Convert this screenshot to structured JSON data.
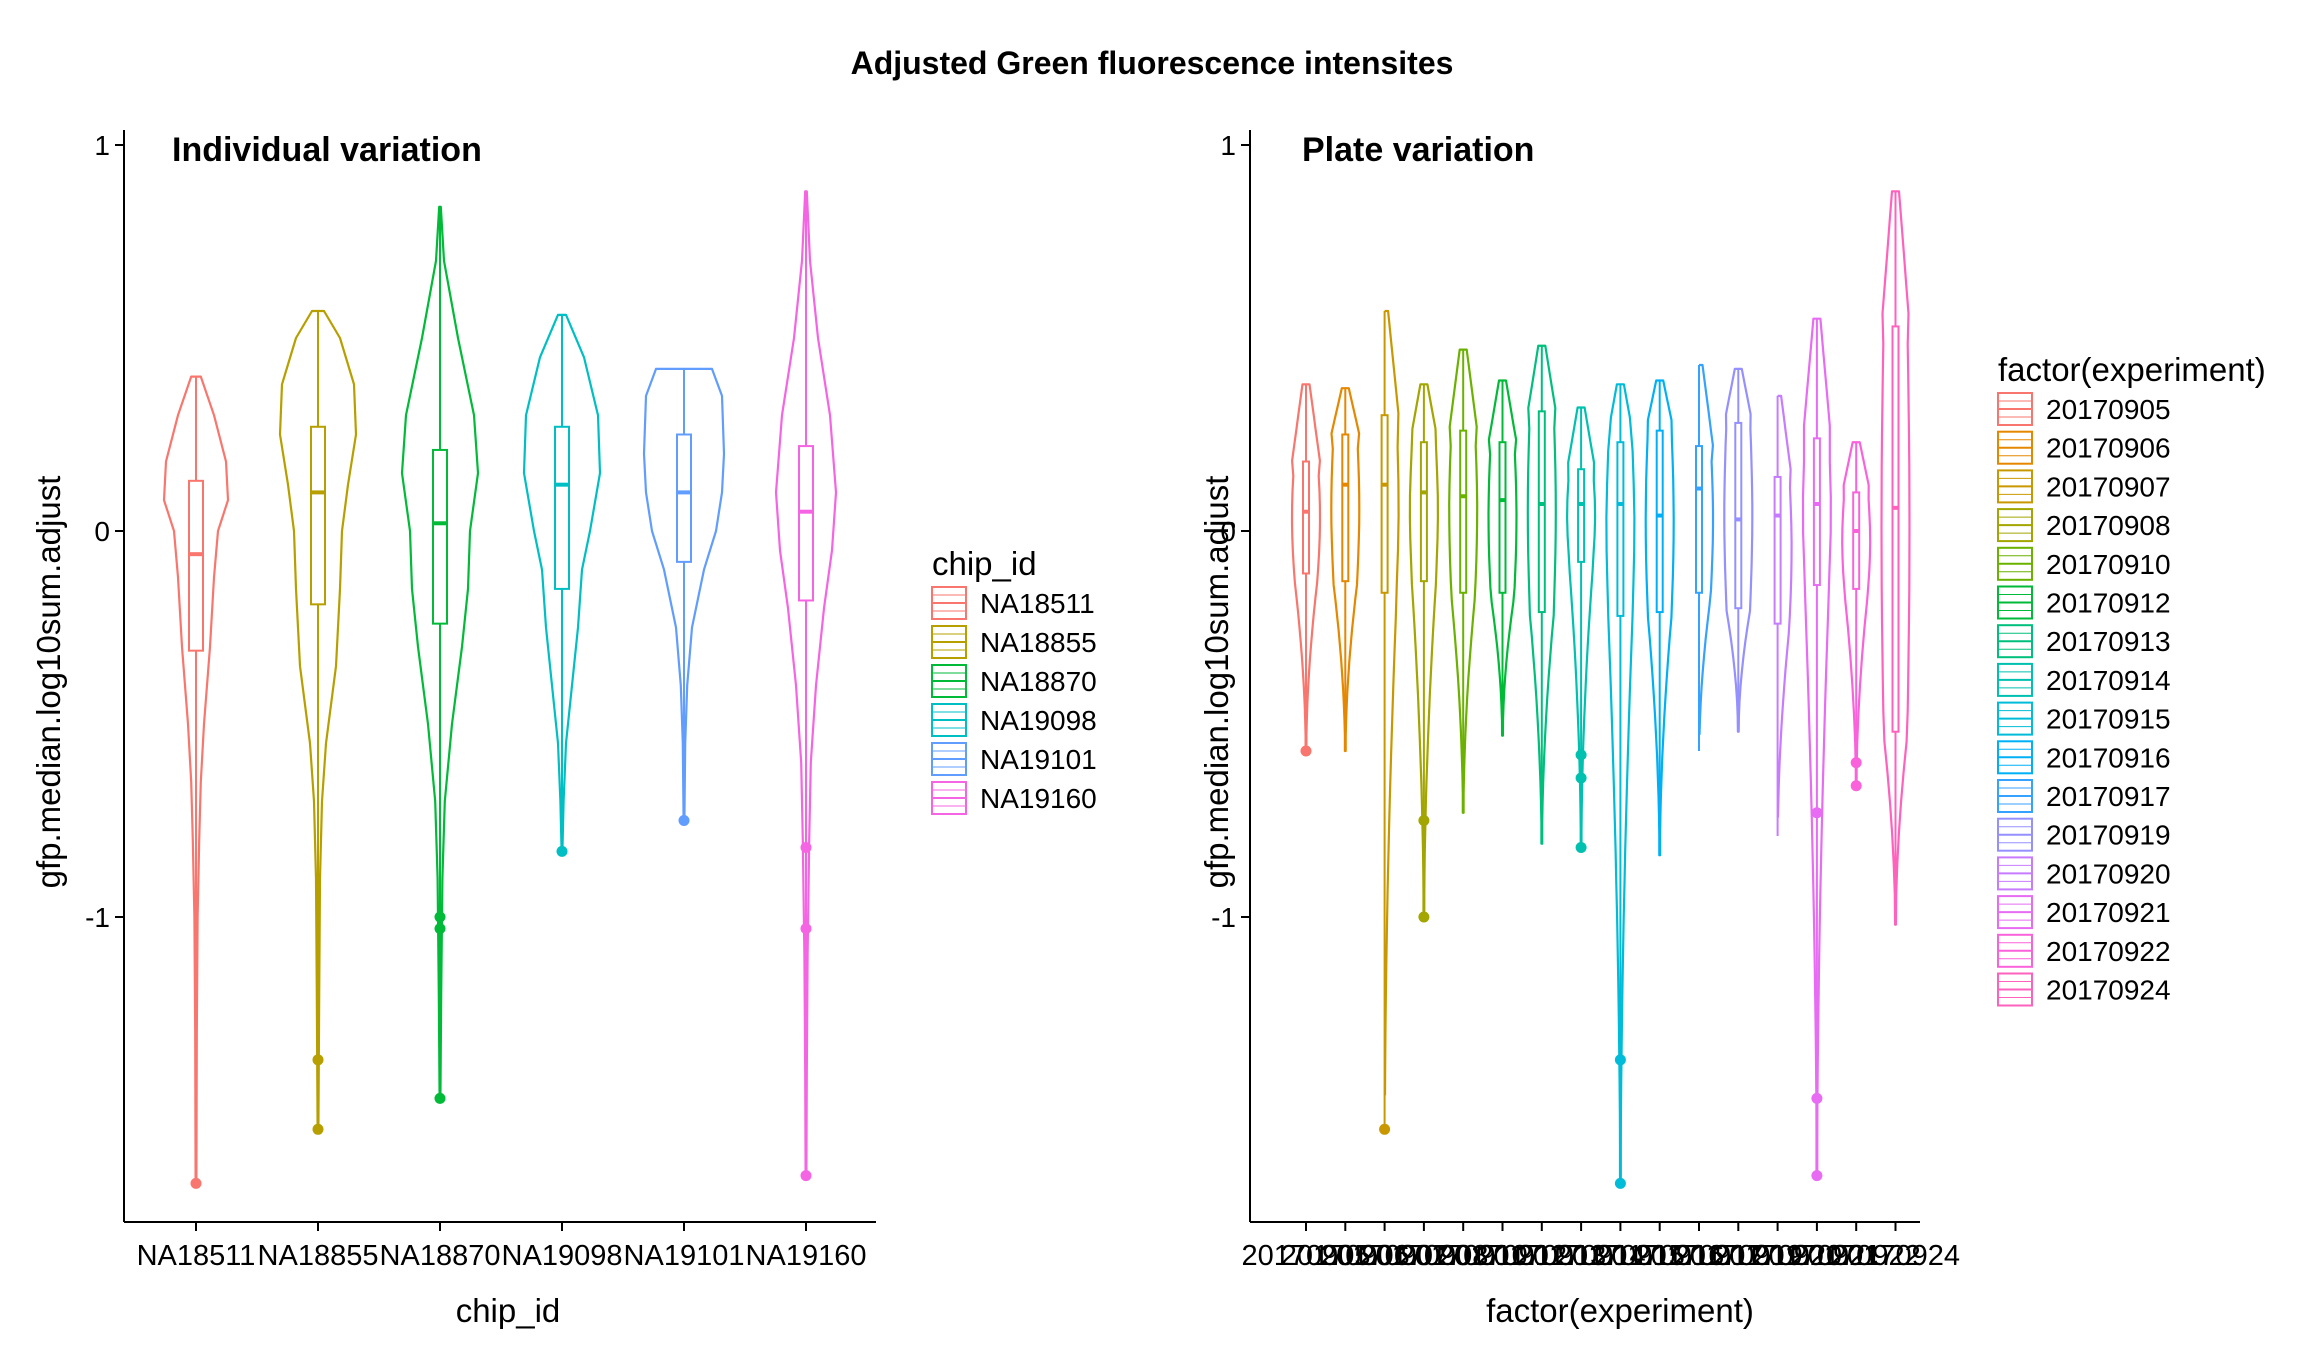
{
  "title": "Adjusted Green fluorescence intensites",
  "chart_data": [
    {
      "type": "violin",
      "panel_title": "Individual variation",
      "xlabel": "chip_id",
      "ylabel": "gfp.median.log10sum.adjust",
      "ylim": [
        -1.83,
        1.0
      ],
      "yticks": [
        1,
        0,
        -1
      ],
      "legend_title": "chip_id",
      "legend_position": "right",
      "groups": [
        {
          "name": "NA18511",
          "color": "#F8766D",
          "min": -1.69,
          "q1": -0.31,
          "median": -0.06,
          "q3": 0.13,
          "max": 0.4,
          "density": [
            [
              0.4,
              0.12
            ],
            [
              0.3,
              0.45
            ],
            [
              0.18,
              0.75
            ],
            [
              0.08,
              0.8
            ],
            [
              0.0,
              0.55
            ],
            [
              -0.12,
              0.45
            ],
            [
              -0.3,
              0.35
            ],
            [
              -0.5,
              0.2
            ],
            [
              -0.65,
              0.12
            ],
            [
              -0.8,
              0.08
            ],
            [
              -1.0,
              0.04
            ],
            [
              -1.3,
              0.02
            ],
            [
              -1.69,
              0.01
            ]
          ],
          "outliers": [
            -1.69
          ]
        },
        {
          "name": "NA18855",
          "color": "#B79F00",
          "min": -1.55,
          "q1": -0.19,
          "median": 0.1,
          "q3": 0.27,
          "max": 0.57,
          "density": [
            [
              0.57,
              0.15
            ],
            [
              0.5,
              0.55
            ],
            [
              0.38,
              0.9
            ],
            [
              0.25,
              0.95
            ],
            [
              0.12,
              0.75
            ],
            [
              0.0,
              0.6
            ],
            [
              -0.15,
              0.55
            ],
            [
              -0.35,
              0.45
            ],
            [
              -0.55,
              0.2
            ],
            [
              -0.7,
              0.1
            ],
            [
              -0.9,
              0.05
            ],
            [
              -1.2,
              0.03
            ],
            [
              -1.55,
              0.01
            ]
          ],
          "outliers": [
            -1.37,
            -1.55
          ]
        },
        {
          "name": "NA18870",
          "color": "#00BA38",
          "min": -1.47,
          "q1": -0.24,
          "median": 0.02,
          "q3": 0.21,
          "max": 0.84,
          "density": [
            [
              0.84,
              0.02
            ],
            [
              0.7,
              0.1
            ],
            [
              0.5,
              0.45
            ],
            [
              0.3,
              0.85
            ],
            [
              0.15,
              0.95
            ],
            [
              0.0,
              0.75
            ],
            [
              -0.15,
              0.7
            ],
            [
              -0.3,
              0.55
            ],
            [
              -0.5,
              0.3
            ],
            [
              -0.7,
              0.12
            ],
            [
              -0.9,
              0.06
            ],
            [
              -1.2,
              0.03
            ],
            [
              -1.47,
              0.01
            ]
          ],
          "outliers": [
            -1.0,
            -1.03,
            -1.47
          ]
        },
        {
          "name": "NA19098",
          "color": "#00BFC4",
          "min": -0.83,
          "q1": -0.15,
          "median": 0.12,
          "q3": 0.27,
          "max": 0.56,
          "density": [
            [
              0.56,
              0.1
            ],
            [
              0.45,
              0.55
            ],
            [
              0.3,
              0.9
            ],
            [
              0.15,
              0.95
            ],
            [
              0.0,
              0.7
            ],
            [
              -0.1,
              0.5
            ],
            [
              -0.25,
              0.4
            ],
            [
              -0.4,
              0.25
            ],
            [
              -0.55,
              0.1
            ],
            [
              -0.7,
              0.04
            ],
            [
              -0.83,
              0.01
            ]
          ],
          "outliers": [
            -0.83
          ]
        },
        {
          "name": "NA19101",
          "color": "#619CFF",
          "min": -0.75,
          "q1": -0.08,
          "median": 0.1,
          "q3": 0.25,
          "max": 0.42,
          "density": [
            [
              0.42,
              0.7
            ],
            [
              0.35,
              0.95
            ],
            [
              0.2,
              1.0
            ],
            [
              0.1,
              0.95
            ],
            [
              0.0,
              0.8
            ],
            [
              -0.1,
              0.5
            ],
            [
              -0.25,
              0.2
            ],
            [
              -0.4,
              0.08
            ],
            [
              -0.55,
              0.03
            ],
            [
              -0.75,
              0.01
            ]
          ],
          "outliers": [
            -0.75
          ]
        },
        {
          "name": "NA19160",
          "color": "#F564E3",
          "min": -1.67,
          "q1": -0.18,
          "median": 0.05,
          "q3": 0.22,
          "max": 0.88,
          "density": [
            [
              0.88,
              0.02
            ],
            [
              0.7,
              0.1
            ],
            [
              0.5,
              0.3
            ],
            [
              0.3,
              0.6
            ],
            [
              0.1,
              0.75
            ],
            [
              -0.05,
              0.65
            ],
            [
              -0.2,
              0.45
            ],
            [
              -0.4,
              0.25
            ],
            [
              -0.6,
              0.12
            ],
            [
              -0.8,
              0.08
            ],
            [
              -1.1,
              0.04
            ],
            [
              -1.4,
              0.02
            ],
            [
              -1.67,
              0.01
            ]
          ],
          "outliers": [
            -0.82,
            -1.03,
            -1.67
          ]
        }
      ]
    },
    {
      "type": "violin",
      "panel_title": "Plate variation",
      "xlabel": "factor(experiment)",
      "ylabel": "gfp.median.log10sum.adjust",
      "ylim": [
        -1.83,
        1.0
      ],
      "yticks": [
        1,
        0,
        -1
      ],
      "legend_title": "factor(experiment)",
      "legend_position": "right",
      "groups": [
        {
          "name": "20170905",
          "color": "#F8766D",
          "min": -0.57,
          "max": 0.38,
          "q1": -0.11,
          "median": 0.05,
          "q3": 0.18,
          "outliers": [
            -0.57
          ]
        },
        {
          "name": "20170906",
          "color": "#E58700",
          "min": -0.57,
          "max": 0.37,
          "q1": -0.13,
          "median": 0.12,
          "q3": 0.25,
          "outliers": []
        },
        {
          "name": "20170907",
          "color": "#C99800",
          "min": -1.55,
          "max": 0.57,
          "q1": -0.16,
          "median": 0.12,
          "q3": 0.3,
          "outliers": [
            -1.55
          ]
        },
        {
          "name": "20170908",
          "color": "#A3A500",
          "min": -1.0,
          "max": 0.38,
          "q1": -0.13,
          "median": 0.1,
          "q3": 0.23,
          "outliers": [
            -0.75,
            -1.0
          ]
        },
        {
          "name": "20170910",
          "color": "#6BB100",
          "min": -0.73,
          "max": 0.47,
          "q1": -0.16,
          "median": 0.09,
          "q3": 0.26,
          "outliers": []
        },
        {
          "name": "20170912",
          "color": "#00BA38",
          "min": -0.53,
          "max": 0.39,
          "q1": -0.16,
          "median": 0.08,
          "q3": 0.23,
          "outliers": []
        },
        {
          "name": "20170913",
          "color": "#00BF7D",
          "min": -0.81,
          "max": 0.48,
          "q1": -0.21,
          "median": 0.07,
          "q3": 0.31,
          "outliers": []
        },
        {
          "name": "20170914",
          "color": "#00C0AF",
          "min": -0.82,
          "max": 0.32,
          "q1": -0.08,
          "median": 0.07,
          "q3": 0.16,
          "outliers": [
            -0.58,
            -0.64,
            -0.82
          ]
        },
        {
          "name": "20170915",
          "color": "#00BCD8",
          "min": -1.69,
          "max": 0.38,
          "q1": -0.22,
          "median": 0.07,
          "q3": 0.23,
          "outliers": [
            -1.37,
            -1.69
          ]
        },
        {
          "name": "20170916",
          "color": "#00B0F6",
          "min": -0.84,
          "max": 0.39,
          "q1": -0.21,
          "median": 0.04,
          "q3": 0.26,
          "outliers": []
        },
        {
          "name": "20170917",
          "color": "#35A2FF",
          "min": -0.57,
          "max": 0.43,
          "q1": -0.16,
          "median": 0.11,
          "q3": 0.22,
          "outliers": []
        },
        {
          "name": "20170919",
          "color": "#9590FF",
          "min": -0.52,
          "max": 0.42,
          "q1": -0.2,
          "median": 0.03,
          "q3": 0.28,
          "outliers": []
        },
        {
          "name": "20170920",
          "color": "#C77CFF",
          "min": -0.79,
          "max": 0.35,
          "q1": -0.24,
          "median": 0.04,
          "q3": 0.14,
          "outliers": []
        },
        {
          "name": "20170921",
          "color": "#E76BF3",
          "min": -1.67,
          "max": 0.55,
          "q1": -0.14,
          "median": 0.07,
          "q3": 0.24,
          "outliers": [
            -0.73,
            -1.47,
            -1.67
          ]
        },
        {
          "name": "20170922",
          "color": "#FA62DB",
          "min": -0.66,
          "max": 0.23,
          "q1": -0.15,
          "median": 0.0,
          "q3": 0.1,
          "outliers": [
            -0.6,
            -0.66
          ]
        },
        {
          "name": "20170924",
          "color": "#FF62BC",
          "min": -1.02,
          "max": 0.88,
          "q1": -0.52,
          "median": 0.06,
          "q3": 0.53,
          "outliers": []
        }
      ]
    }
  ]
}
